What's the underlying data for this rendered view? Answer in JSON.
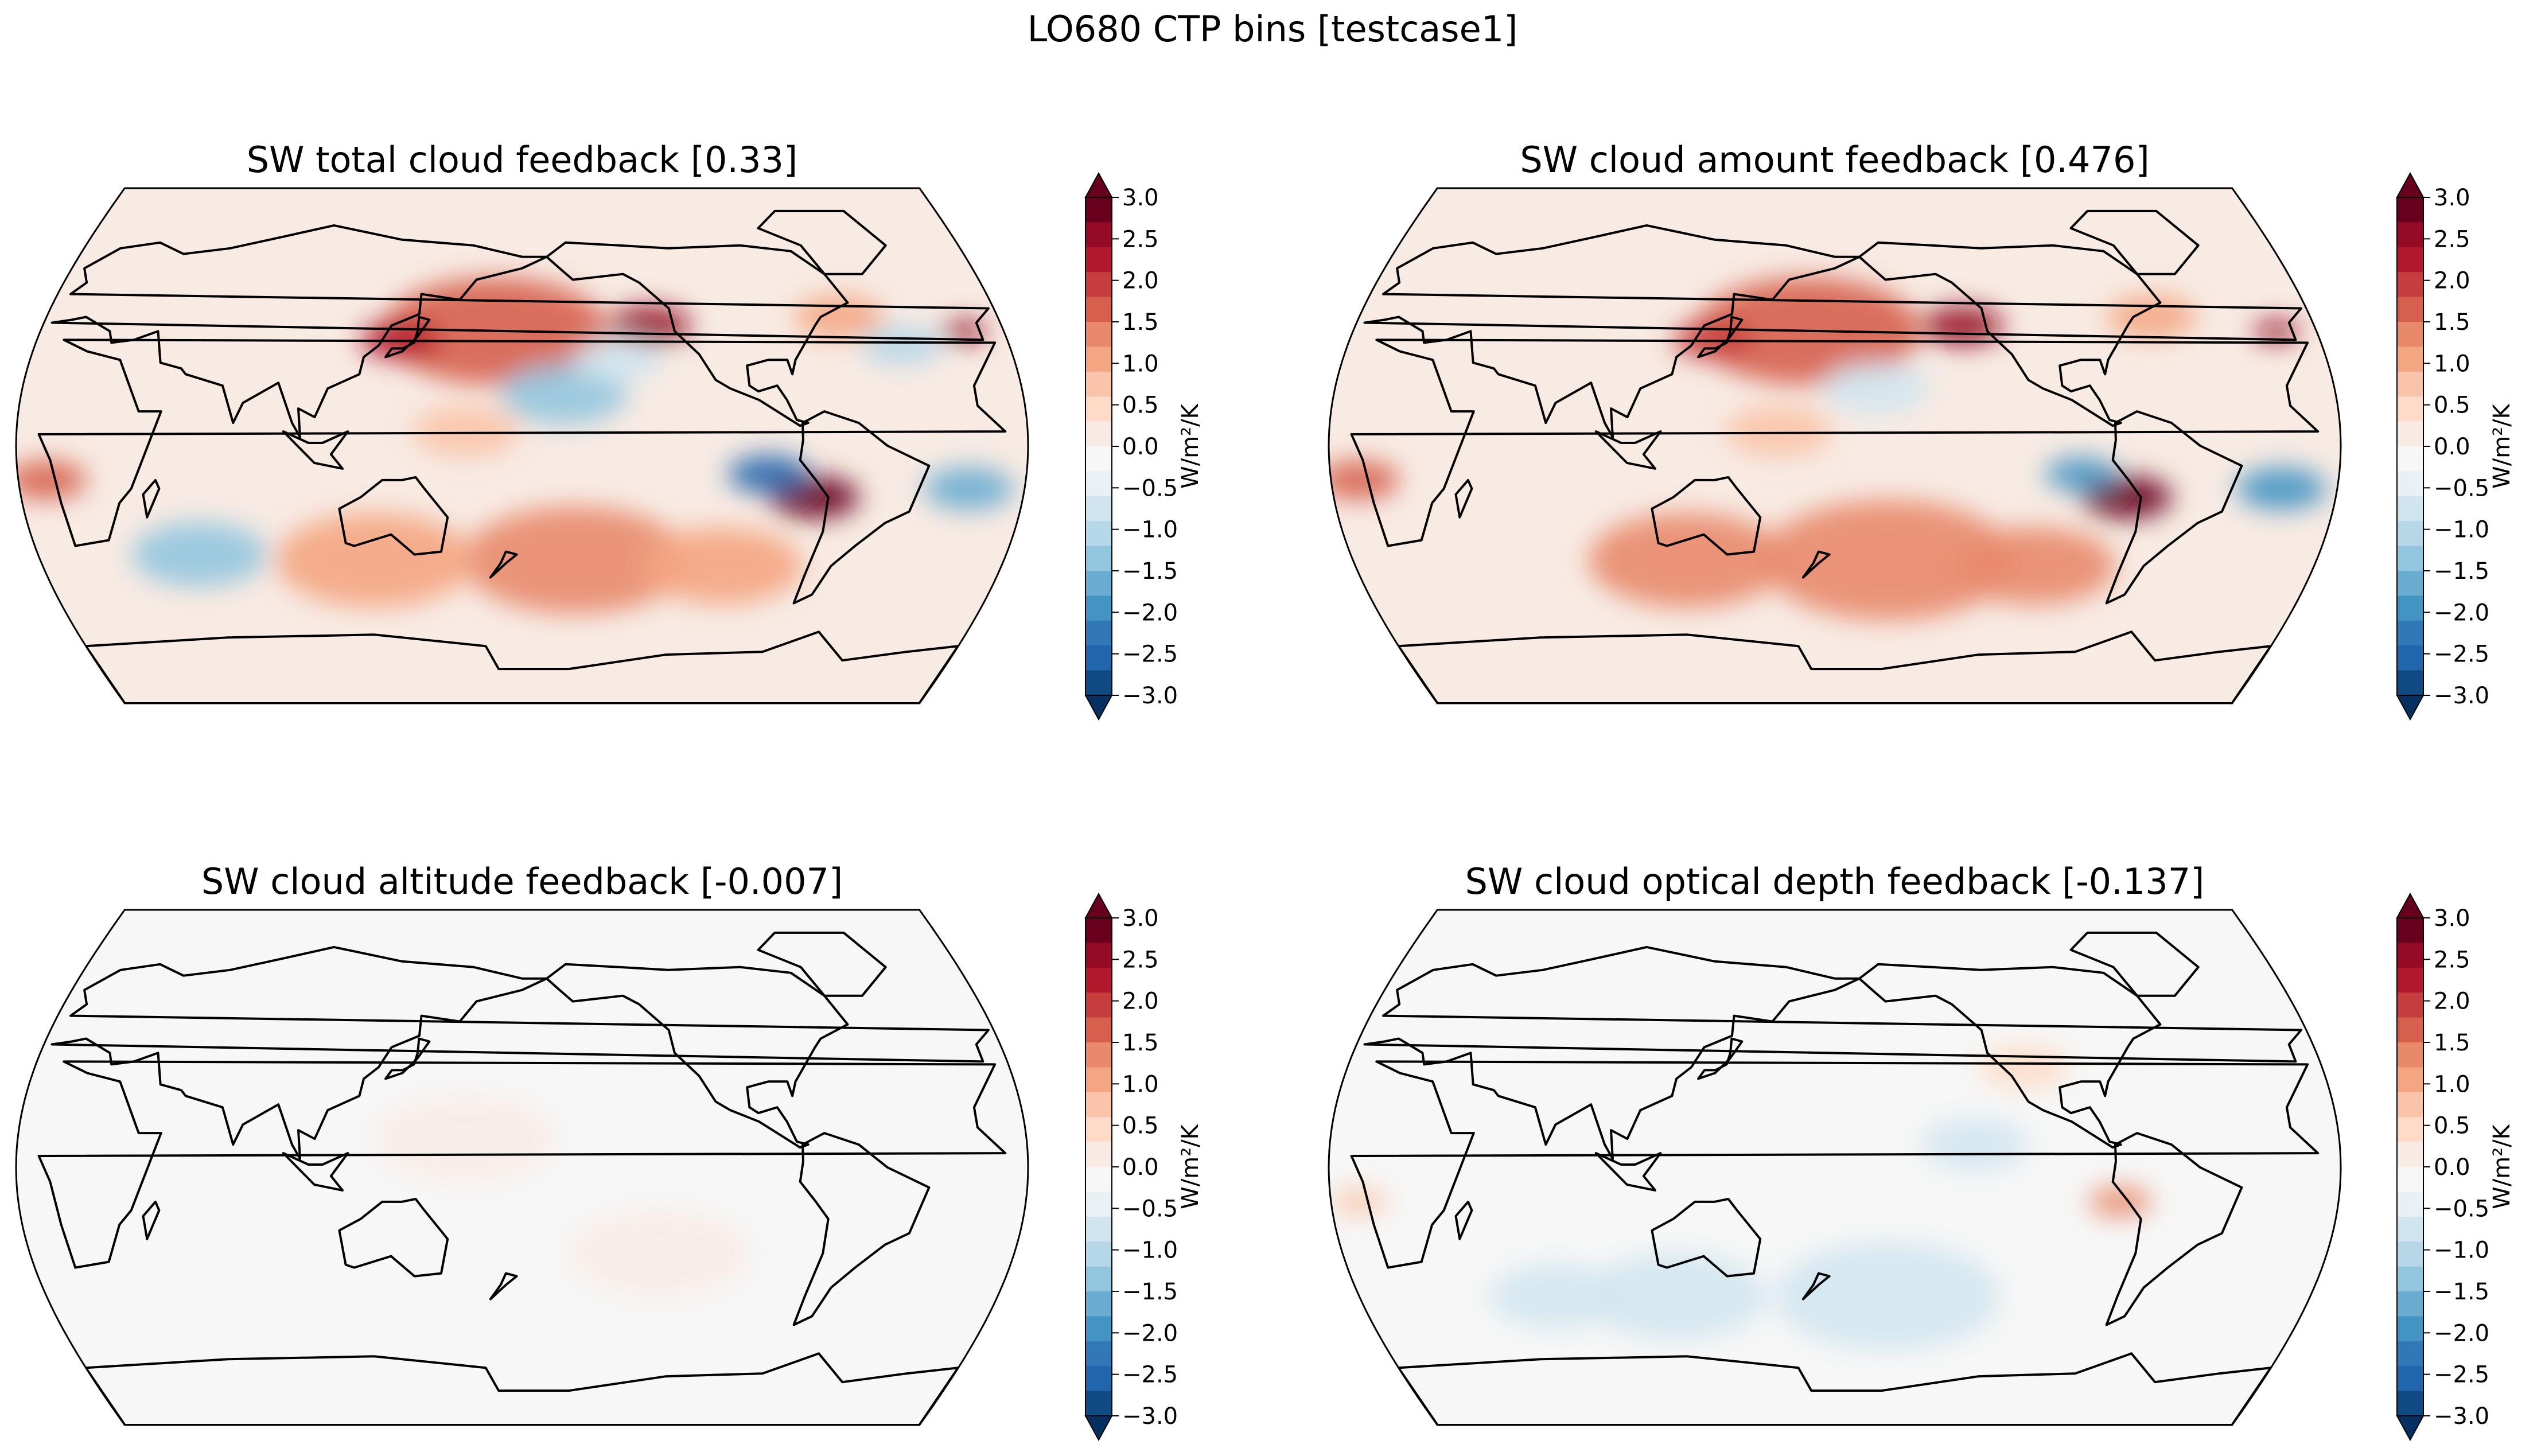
{
  "figure_title": "LO680 CTP bins [testcase1]",
  "colorbar": {
    "ticks": [
      "3.0",
      "2.5",
      "2.0",
      "1.5",
      "1.0",
      "0.5",
      "0.0",
      "−0.5",
      "−1.0",
      "−1.5",
      "−2.0",
      "−2.5",
      "−3.0"
    ],
    "label": "W/m²/K",
    "colors": [
      "#67001f",
      "#940b26",
      "#b2182b",
      "#c53e3d",
      "#d6604d",
      "#e8896b",
      "#f4a582",
      "#f9c4a9",
      "#fddbc7",
      "#f8ebe4",
      "#f7f7f7",
      "#e9f1f5",
      "#d1e5f0",
      "#b5d7e8",
      "#92c5de",
      "#6aacd0",
      "#4393c3",
      "#3079b6",
      "#2166ac",
      "#0f4a82"
    ],
    "extend_max_color": "#67001f",
    "extend_min_color": "#053061",
    "vmin": -3.0,
    "vmax": 3.0
  },
  "panels": [
    {
      "title": "SW total cloud feedback [0.33]",
      "background_level": 0.2,
      "anomalies": [
        {
          "lon": 170,
          "lat": 40,
          "value": 1.6,
          "r": 25
        },
        {
          "lon": 135,
          "lat": 37,
          "value": 2.2,
          "r": 9
        },
        {
          "lon": 228,
          "lat": 42,
          "value": 2.5,
          "r": 9
        },
        {
          "lon": 285,
          "lat": -18,
          "value": 2.7,
          "r": 10
        },
        {
          "lon": 268,
          "lat": -10,
          "value": -2.4,
          "r": 9
        },
        {
          "lon": 195,
          "lat": 18,
          "value": -1.2,
          "r": 14
        },
        {
          "lon": 215,
          "lat": 30,
          "value": -0.8,
          "r": 10
        },
        {
          "lon": 200,
          "lat": -40,
          "value": 1.2,
          "r": 25
        },
        {
          "lon": 125,
          "lat": -40,
          "value": 1.0,
          "r": 22
        },
        {
          "lon": 255,
          "lat": -42,
          "value": 1.0,
          "r": 18
        },
        {
          "lon": 10,
          "lat": -12,
          "value": 1.7,
          "r": 9
        },
        {
          "lon": 340,
          "lat": -15,
          "value": -1.5,
          "r": 10
        },
        {
          "lon": 60,
          "lat": -38,
          "value": -1.2,
          "r": 15
        },
        {
          "lon": 320,
          "lat": 35,
          "value": -1.0,
          "r": 9
        },
        {
          "lon": 300,
          "lat": 45,
          "value": 1.0,
          "r": 10
        },
        {
          "lon": 160,
          "lat": 5,
          "value": 0.8,
          "r": 12
        },
        {
          "lon": 345,
          "lat": 40,
          "value": 2.5,
          "r": 5
        }
      ]
    },
    {
      "title": "SW cloud amount feedback [0.476]",
      "background_level": 0.3,
      "anomalies": [
        {
          "lon": 170,
          "lat": 40,
          "value": 1.6,
          "r": 25
        },
        {
          "lon": 135,
          "lat": 37,
          "value": 2.0,
          "r": 9
        },
        {
          "lon": 228,
          "lat": 42,
          "value": 2.6,
          "r": 9
        },
        {
          "lon": 285,
          "lat": -18,
          "value": 2.8,
          "r": 10
        },
        {
          "lon": 268,
          "lat": -10,
          "value": -2.0,
          "r": 8
        },
        {
          "lon": 195,
          "lat": 20,
          "value": -0.8,
          "r": 12
        },
        {
          "lon": 200,
          "lat": -40,
          "value": 1.3,
          "r": 28
        },
        {
          "lon": 125,
          "lat": -40,
          "value": 1.2,
          "r": 22
        },
        {
          "lon": 255,
          "lat": -42,
          "value": 1.2,
          "r": 18
        },
        {
          "lon": 10,
          "lat": -12,
          "value": 1.8,
          "r": 9
        },
        {
          "lon": 340,
          "lat": -15,
          "value": -1.8,
          "r": 10
        },
        {
          "lon": 300,
          "lat": 45,
          "value": 1.0,
          "r": 10
        },
        {
          "lon": 160,
          "lat": 5,
          "value": 0.9,
          "r": 12
        },
        {
          "lon": 345,
          "lat": 40,
          "value": 2.5,
          "r": 5
        }
      ]
    },
    {
      "title": "SW cloud altitude feedback [-0.007]",
      "background_level": 0.0,
      "anomalies": [
        {
          "lon": 160,
          "lat": 10,
          "value": 0.2,
          "r": 20
        },
        {
          "lon": 230,
          "lat": -30,
          "value": 0.2,
          "r": 20
        }
      ]
    },
    {
      "title": "SW cloud optical depth feedback [-0.137]",
      "background_level": -0.2,
      "anomalies": [
        {
          "lon": 282,
          "lat": -12,
          "value": 1.5,
          "r": 7
        },
        {
          "lon": 120,
          "lat": -45,
          "value": -0.8,
          "r": 20
        },
        {
          "lon": 200,
          "lat": -45,
          "value": -0.6,
          "r": 25
        },
        {
          "lon": 230,
          "lat": 8,
          "value": -0.6,
          "r": 12
        },
        {
          "lon": 10,
          "lat": -12,
          "value": 0.8,
          "r": 6
        },
        {
          "lon": 250,
          "lat": 35,
          "value": 0.4,
          "r": 10
        },
        {
          "lon": 75,
          "lat": -45,
          "value": -0.7,
          "r": 15
        }
      ]
    }
  ]
}
